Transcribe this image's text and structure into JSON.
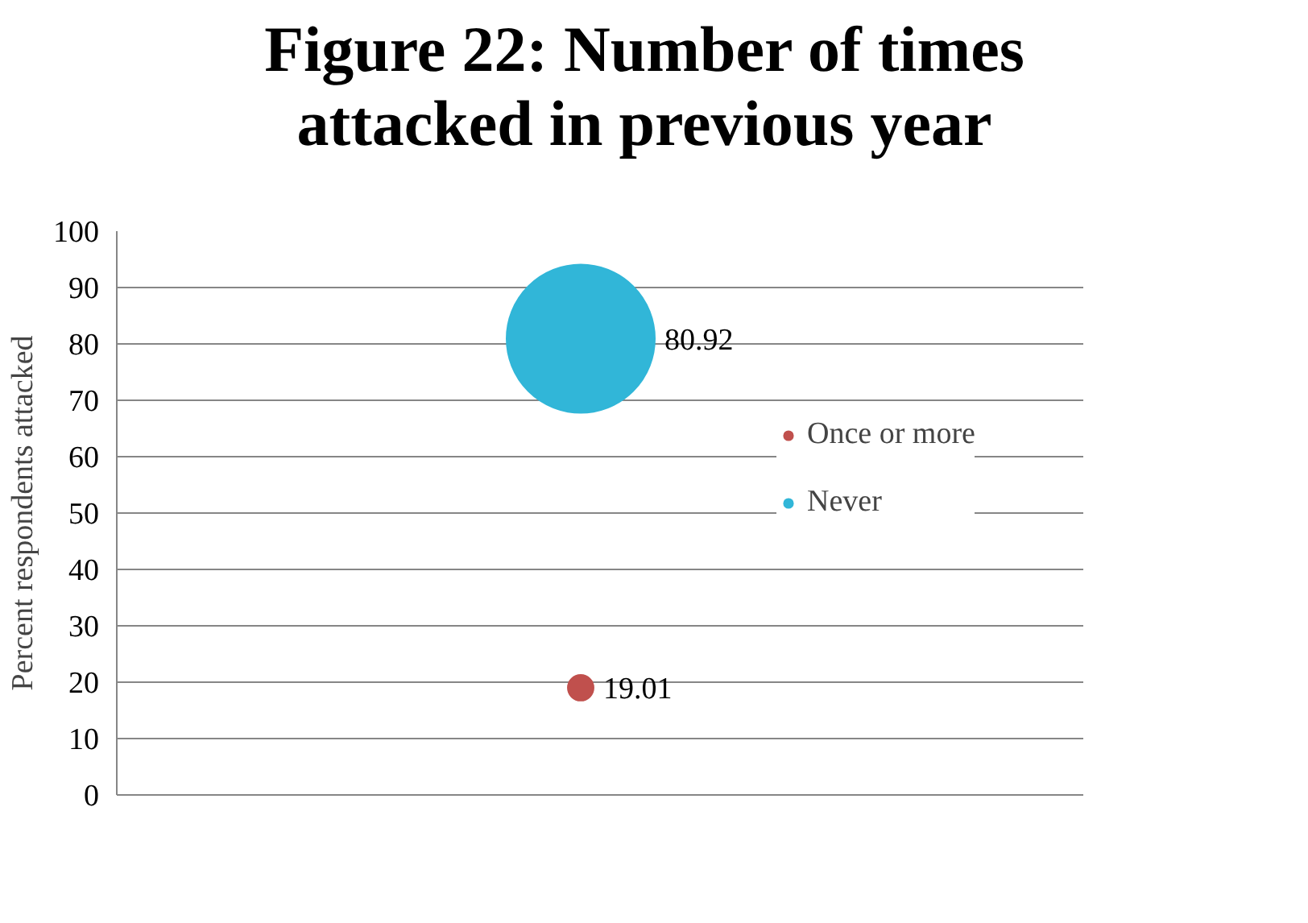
{
  "chart_data": {
    "type": "bubble",
    "title": "Figure 22: Number of times attacked in previous year",
    "ylabel": "Percent respondents attacked",
    "categories": [
      null
    ],
    "series": [
      {
        "name": "Once or more",
        "color": "#c0504d",
        "values": [
          19.01
        ],
        "sizes": [
          0.03
        ]
      },
      {
        "name": "Never",
        "color": "#31b6d8",
        "values": [
          80.92
        ],
        "sizes": [
          1
        ]
      }
    ],
    "ylim": [
      0,
      100
    ],
    "yticks": [
      0,
      10,
      20,
      30,
      40,
      50,
      60,
      70,
      80,
      90,
      100
    ],
    "grid": "y",
    "legend": "right",
    "data_labels": true
  }
}
